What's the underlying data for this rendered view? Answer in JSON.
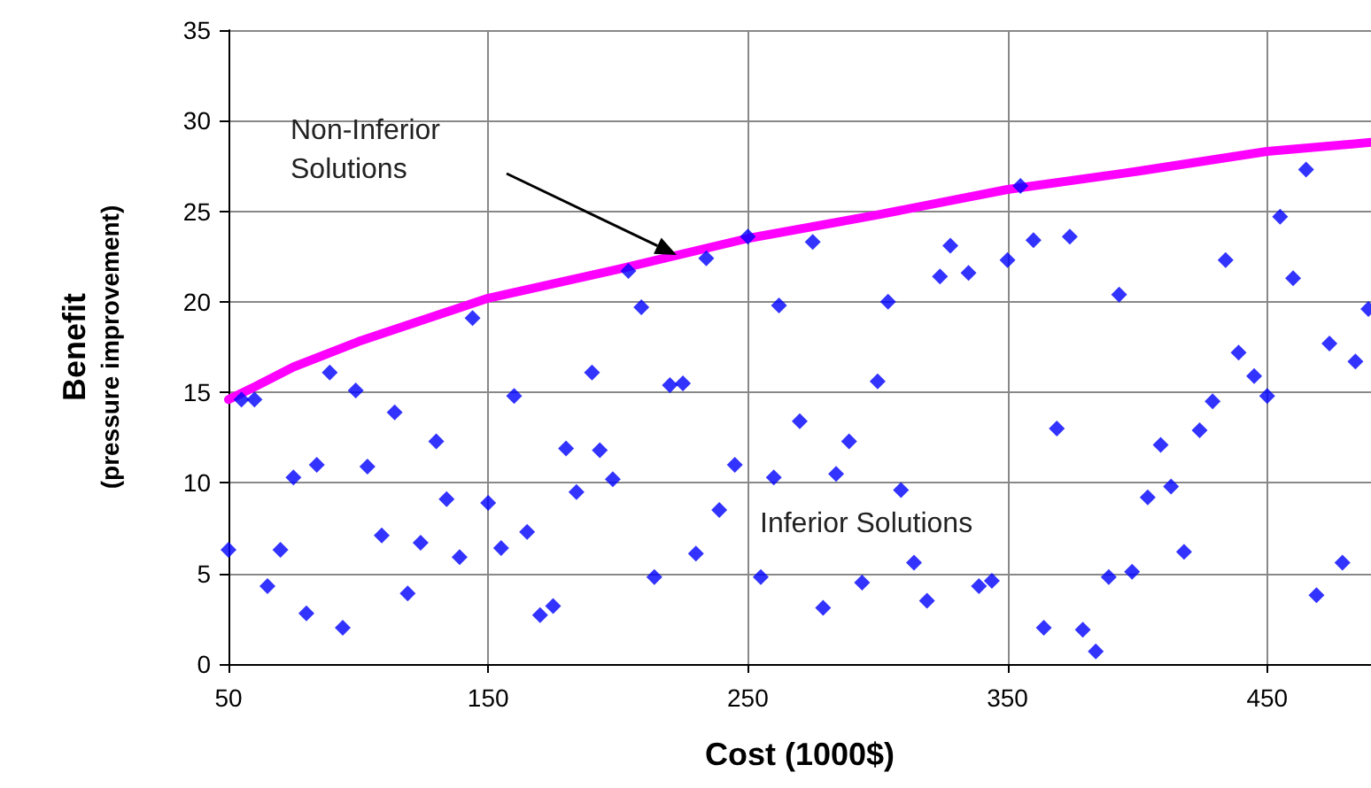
{
  "chart_data": {
    "type": "scatter",
    "xlabel": "Cost (1000$)",
    "ylabel": "Benefit\n(pressure improvement)",
    "xlim": [
      50,
      490
    ],
    "xticks": [
      50,
      150,
      250,
      350,
      450
    ],
    "ylim": [
      0,
      35
    ],
    "yticks": [
      0,
      5,
      10,
      15,
      20,
      25,
      30,
      35
    ],
    "grid": true,
    "annotations": [
      "Non-Inferior Solutions",
      "Inferior Solutions"
    ],
    "series": [
      {
        "type": "line",
        "color": "#ff00ff",
        "marker": "none",
        "line_style": "solid",
        "x": [
          50,
          60,
          75,
          100,
          125,
          150,
          200,
          250,
          300,
          350,
          400,
          450,
          490
        ],
        "values": [
          14.6,
          15.3,
          16.4,
          17.8,
          19,
          20.2,
          21.8,
          23.5,
          24.8,
          26.2,
          27.2,
          28.3,
          28.8
        ]
      },
      {
        "color": "#0000ff",
        "marker": "diamond",
        "x": [
          50,
          55,
          60,
          65,
          70,
          75,
          80,
          84,
          89,
          94,
          99,
          103.5,
          109,
          114,
          119,
          124,
          130,
          134,
          139,
          144,
          150,
          155,
          160,
          165,
          170,
          175,
          180,
          184,
          190,
          193,
          198,
          204,
          209,
          214,
          220,
          225,
          230,
          234,
          239,
          245,
          250,
          255,
          260,
          262,
          270,
          275,
          279,
          284,
          289,
          294,
          300,
          304,
          309,
          314,
          319,
          324,
          328,
          335,
          339,
          344,
          350,
          355,
          360,
          364,
          369,
          374,
          379,
          384,
          389,
          393,
          398,
          404,
          409,
          413,
          418,
          424,
          429,
          434,
          439,
          445,
          450,
          455,
          460,
          465,
          469,
          474,
          479,
          484,
          489
        ],
        "values": [
          6.3,
          14.6,
          14.6,
          4.3,
          6.3,
          10.3,
          2.8,
          11,
          16.1,
          2,
          15.1,
          10.9,
          7.1,
          13.9,
          3.9,
          6.7,
          12.3,
          9.1,
          5.9,
          19.1,
          8.9,
          6.4,
          14.8,
          7.3,
          2.7,
          3.2,
          11.9,
          9.5,
          16.1,
          11.8,
          10.2,
          21.7,
          19.7,
          4.8,
          15.4,
          15.5,
          6.1,
          22.4,
          8.5,
          11,
          23.6,
          4.8,
          10.3,
          19.8,
          13.4,
          23.3,
          3.1,
          10.5,
          12.3,
          4.5,
          15.6,
          20,
          9.6,
          5.6,
          3.5,
          21.4,
          23.1,
          21.6,
          4.3,
          4.6,
          22.3,
          26.4,
          23.4,
          2,
          13,
          23.6,
          1.9,
          0.7,
          4.8,
          20.4,
          5.1,
          9.2,
          12.1,
          9.8,
          6.2,
          12.9,
          14.5,
          22.3,
          17.2,
          15.9,
          14.8,
          24.7,
          21.3,
          27.3,
          3.8,
          17.7,
          5.6,
          16.7,
          19.6
        ]
      }
    ]
  }
}
